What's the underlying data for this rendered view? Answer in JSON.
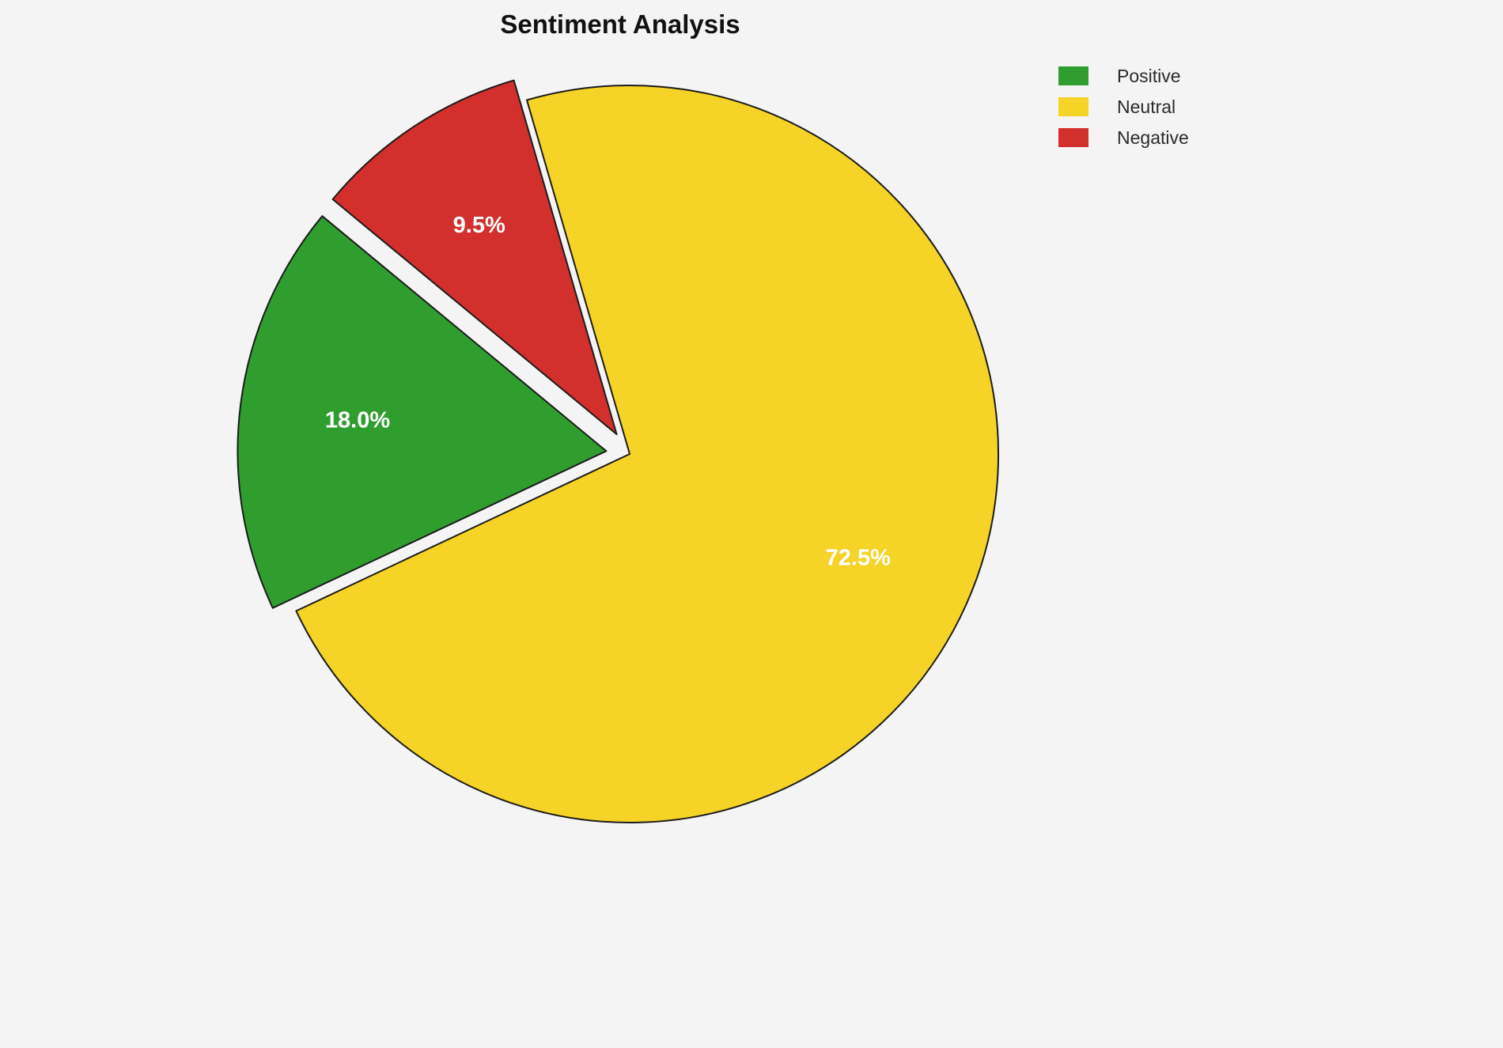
{
  "page": {
    "background": "#f4f4f4"
  },
  "chart_data": {
    "type": "pie",
    "title": "Sentiment Analysis",
    "slices": [
      {
        "label": "Positive",
        "value": 18.0,
        "pct_label": "18.0%",
        "color": "#2f9e2f",
        "explode": 0.064
      },
      {
        "label": "Neutral",
        "value": 72.5,
        "pct_label": "72.5%",
        "color": "#f5d327",
        "explode": 0
      },
      {
        "label": "Negative",
        "value": 9.5,
        "pct_label": "9.5%",
        "color": "#d32f2c",
        "explode": 0.064
      }
    ],
    "start_angle_deg": 140.4,
    "direction": "counterclockwise",
    "legend_position": "upper right",
    "legend_labels": [
      "Positive",
      "Neutral",
      "Negative"
    ],
    "pct_label_color": "#ffffff",
    "edge_color": "#1c1c1c",
    "title_color": "#111111"
  }
}
